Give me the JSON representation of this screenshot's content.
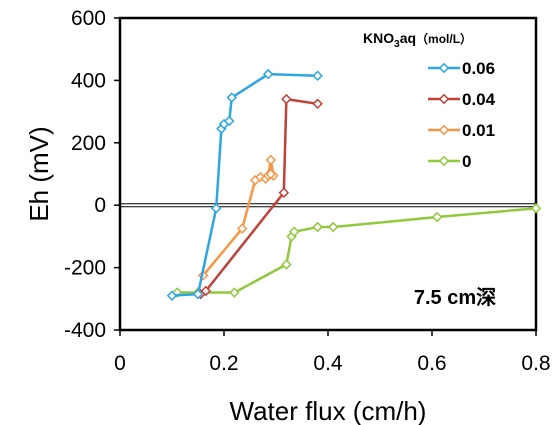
{
  "chart_data": {
    "type": "scatter",
    "title": "",
    "xlabel": "Water flux (cm/h)",
    "ylabel": "Eh (mV)",
    "xlim": [
      0,
      0.8
    ],
    "ylim": [
      -400,
      600
    ],
    "xticks": [
      "0",
      "0.2",
      "0.4",
      "0.6",
      "0.8"
    ],
    "yticks": [
      "-400",
      "-200",
      "0",
      "200",
      "400",
      "600"
    ],
    "xtick_values": [
      0,
      0.2,
      0.4,
      0.6,
      0.8
    ],
    "ytick_values": [
      -400,
      -200,
      0,
      200,
      400,
      600
    ],
    "grid": false,
    "reference_line_y": 0,
    "legend": {
      "placement": "top-right",
      "title_main": "KNO",
      "title_sub": "3",
      "title_tail": "aq",
      "title_unit": "（mol/L）"
    },
    "annotation": "7.5 cm深",
    "series": [
      {
        "name": "0.06",
        "color": "#2EA6E0",
        "x": [
          0.1,
          0.15,
          0.185,
          0.195,
          0.2,
          0.21,
          0.215,
          0.285,
          0.38
        ],
        "y": [
          -290,
          -285,
          -10,
          245,
          260,
          270,
          345,
          420,
          415
        ]
      },
      {
        "name": "0.04",
        "color": "#C0403A",
        "x": [
          0.155,
          0.165,
          0.315,
          0.32,
          0.38
        ],
        "y": [
          -285,
          -275,
          40,
          340,
          325
        ]
      },
      {
        "name": "0.01",
        "color": "#F79646",
        "x": [
          0.16,
          0.235,
          0.26,
          0.27,
          0.28,
          0.285,
          0.29,
          0.295,
          0.29
        ],
        "y": [
          -225,
          -75,
          80,
          90,
          85,
          95,
          145,
          95,
          100
        ]
      },
      {
        "name": "0",
        "color": "#92C83E",
        "x": [
          0.11,
          0.15,
          0.22,
          0.32,
          0.33,
          0.335,
          0.38,
          0.41,
          0.61,
          0.8
        ],
        "y": [
          -280,
          -280,
          -280,
          -190,
          -100,
          -85,
          -70,
          -70,
          -38,
          -10
        ]
      }
    ]
  }
}
